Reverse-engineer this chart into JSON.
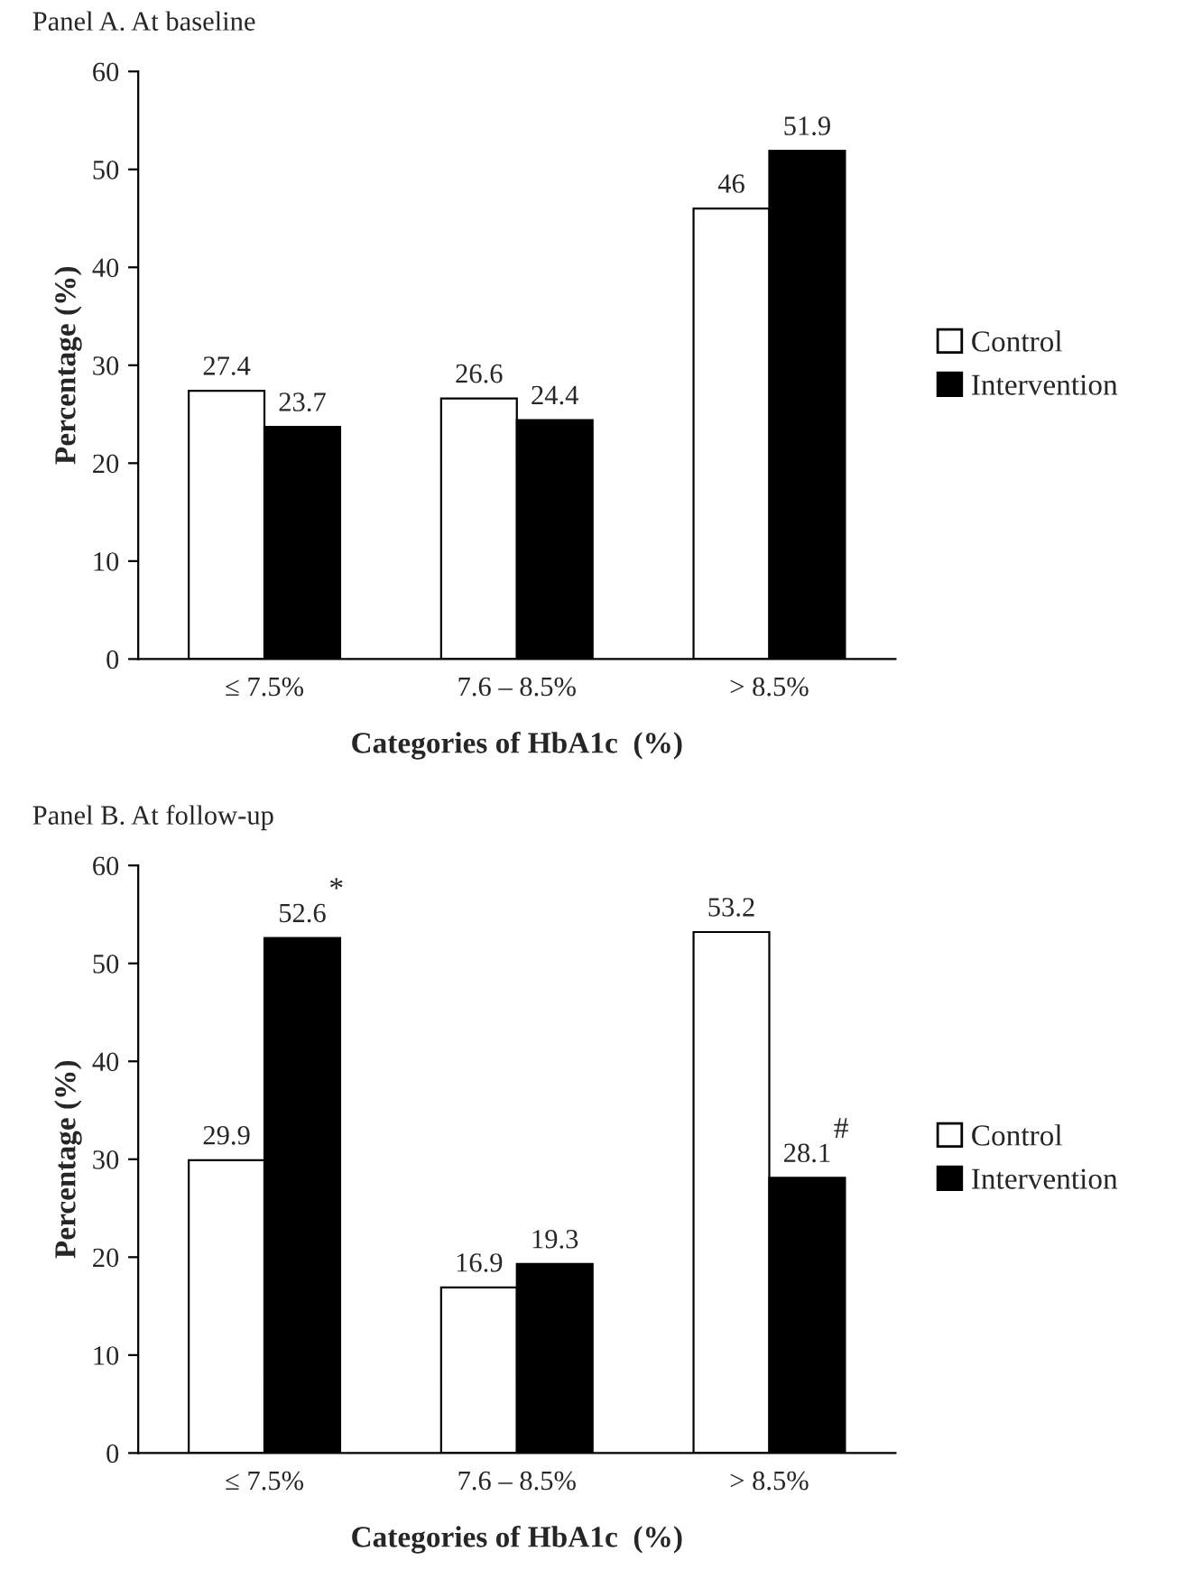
{
  "chart_data": [
    {
      "type": "bar",
      "title": "Panel A. At baseline",
      "xlabel": "Categories of HbA1c  (%)",
      "ylabel": "Percentage (%)",
      "categories": [
        "≤ 7.5%",
        "7.6 – 8.5%",
        "> 8.5%"
      ],
      "series": [
        {
          "name": "Control",
          "color": "#ffffff",
          "values": [
            27.4,
            26.6,
            46
          ]
        },
        {
          "name": "Intervention",
          "color": "#000000",
          "values": [
            23.7,
            24.4,
            51.9
          ]
        }
      ],
      "ylim": [
        0,
        60
      ],
      "yticks": [
        0,
        10,
        20,
        30,
        40,
        50,
        60
      ],
      "grid": false,
      "legend": "right",
      "data_labels": true
    },
    {
      "type": "bar",
      "title": "Panel B. At follow-up",
      "xlabel": "Categories of HbA1c  (%)",
      "ylabel": "Percentage (%)",
      "categories": [
        "≤ 7.5%",
        "7.6 – 8.5%",
        "> 8.5%"
      ],
      "series": [
        {
          "name": "Control",
          "color": "#ffffff",
          "values": [
            29.9,
            16.9,
            53.2
          ]
        },
        {
          "name": "Intervention",
          "color": "#000000",
          "values": [
            52.6,
            19.3,
            28.1
          ]
        }
      ],
      "annotations": [
        {
          "text": "*",
          "x": "≤ 7.5%",
          "y": 52.6
        },
        {
          "text": "#",
          "x": "> 8.5%",
          "y": 28.1
        }
      ],
      "ylim": [
        0,
        60
      ],
      "yticks": [
        0,
        10,
        20,
        30,
        40,
        50,
        60
      ],
      "grid": false,
      "legend": "right",
      "data_labels": true
    }
  ]
}
